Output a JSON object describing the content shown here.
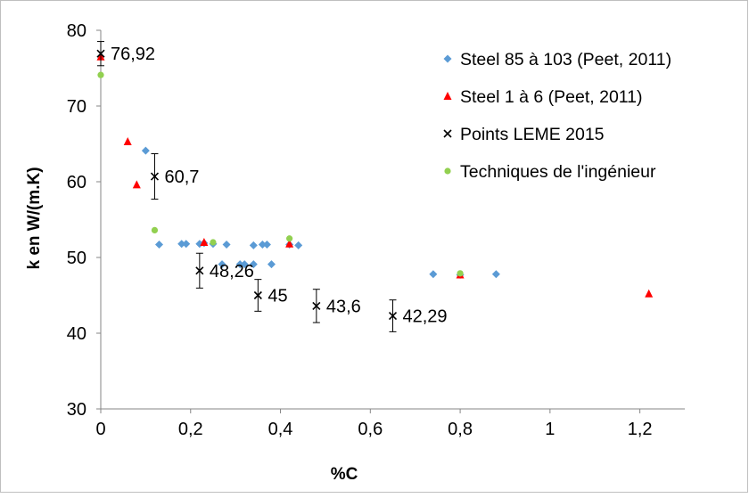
{
  "chart_data": {
    "type": "scatter",
    "title": "",
    "xlabel": "%C",
    "ylabel": "k en W/(m.K)",
    "xlim": [
      0,
      1.3
    ],
    "ylim": [
      30,
      80
    ],
    "x_ticks": [
      0,
      0.2,
      0.4,
      0.6,
      0.8,
      1,
      1.2
    ],
    "x_tick_labels": [
      "0",
      "0,2",
      "0,4",
      "0,6",
      "0,8",
      "1",
      "1,2"
    ],
    "y_ticks": [
      30,
      40,
      50,
      60,
      70,
      80
    ],
    "y_tick_labels": [
      "30",
      "40",
      "50",
      "60",
      "70",
      "80"
    ],
    "grid": false,
    "legend_position": "top-right",
    "series": [
      {
        "name": "Steel 85 à 103 (Peet, 2011)",
        "marker": "diamond",
        "color": "#5B9BD5",
        "points": [
          [
            0.1,
            64.1
          ],
          [
            0.13,
            51.7
          ],
          [
            0.18,
            51.8
          ],
          [
            0.19,
            51.8
          ],
          [
            0.22,
            51.8
          ],
          [
            0.23,
            51.9
          ],
          [
            0.25,
            51.8
          ],
          [
            0.27,
            49.1
          ],
          [
            0.28,
            51.7
          ],
          [
            0.31,
            49.1
          ],
          [
            0.32,
            49.1
          ],
          [
            0.34,
            49.1
          ],
          [
            0.34,
            51.6
          ],
          [
            0.36,
            51.7
          ],
          [
            0.37,
            51.7
          ],
          [
            0.38,
            49.1
          ],
          [
            0.42,
            51.7
          ],
          [
            0.44,
            51.6
          ],
          [
            0.74,
            47.8
          ],
          [
            0.8,
            47.7
          ],
          [
            0.88,
            47.8
          ]
        ]
      },
      {
        "name": "Steel 1 à 6 (Peet, 2011)",
        "marker": "triangle",
        "color": "#FF0000",
        "points": [
          [
            0.0,
            76.5
          ],
          [
            0.06,
            65.3
          ],
          [
            0.08,
            59.6
          ],
          [
            0.23,
            52.0
          ],
          [
            0.42,
            51.8
          ],
          [
            0.8,
            47.7
          ],
          [
            1.22,
            45.2
          ]
        ]
      },
      {
        "name": "Points LEME 2015",
        "marker": "x",
        "color": "#000000",
        "points": [
          [
            0.0,
            76.92
          ],
          [
            0.12,
            60.7
          ],
          [
            0.22,
            48.26
          ],
          [
            0.35,
            45.0
          ],
          [
            0.48,
            43.6
          ],
          [
            0.65,
            42.29
          ]
        ],
        "error_bars": [
          1.6,
          3.0,
          2.3,
          2.1,
          2.2,
          2.1
        ],
        "labels": [
          "76,92",
          "60,7",
          "48,26",
          "45",
          "43,6",
          "42,29"
        ]
      },
      {
        "name": "Techniques de l'ingénieur",
        "marker": "circle",
        "color": "#92D050",
        "points": [
          [
            0.0,
            74.1
          ],
          [
            0.12,
            53.6
          ],
          [
            0.25,
            52.0
          ],
          [
            0.42,
            52.5
          ],
          [
            0.8,
            47.9
          ]
        ]
      }
    ]
  }
}
